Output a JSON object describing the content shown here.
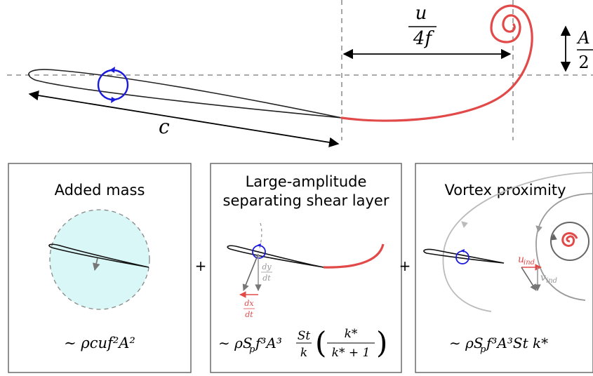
{
  "top": {
    "c_label": "c",
    "u_label": "u",
    "freq_label": "4f",
    "amp_label_num": "A",
    "amp_label_den": "2"
  },
  "panels": [
    {
      "title_lines": [
        "Added mass"
      ],
      "formula": "∼ ρcuf²A²"
    },
    {
      "title_lines": [
        "Large-amplitude",
        "separating shear layer"
      ],
      "formula_a": "∼ ρS",
      "formula_sub": "p",
      "formula_b": "f³A³",
      "frac1_num": "St",
      "frac1_den": "k",
      "frac2_num": "k*",
      "frac2_den": "k* + 1",
      "dy_num": "dy",
      "dy_den": "dt",
      "dx_num": "dx",
      "dx_den": "dt"
    },
    {
      "title_lines": [
        "Vortex proximity"
      ],
      "formula_a": "∼ ρS",
      "formula_sub": "p",
      "formula_b": "f³A³St k*",
      "u_ind": "u",
      "u_ind_sub": "ind",
      "v_ind": "v",
      "v_ind_sub": "ind"
    }
  ],
  "plus_signs": [
    "+",
    "+"
  ],
  "colors": {
    "foil": "#222222",
    "vortex": "#1a1adc",
    "shear": "#e24a4a",
    "added_mass": "#d9f7f6",
    "gray": "#888888",
    "light_gray": "#bbbbbb"
  }
}
